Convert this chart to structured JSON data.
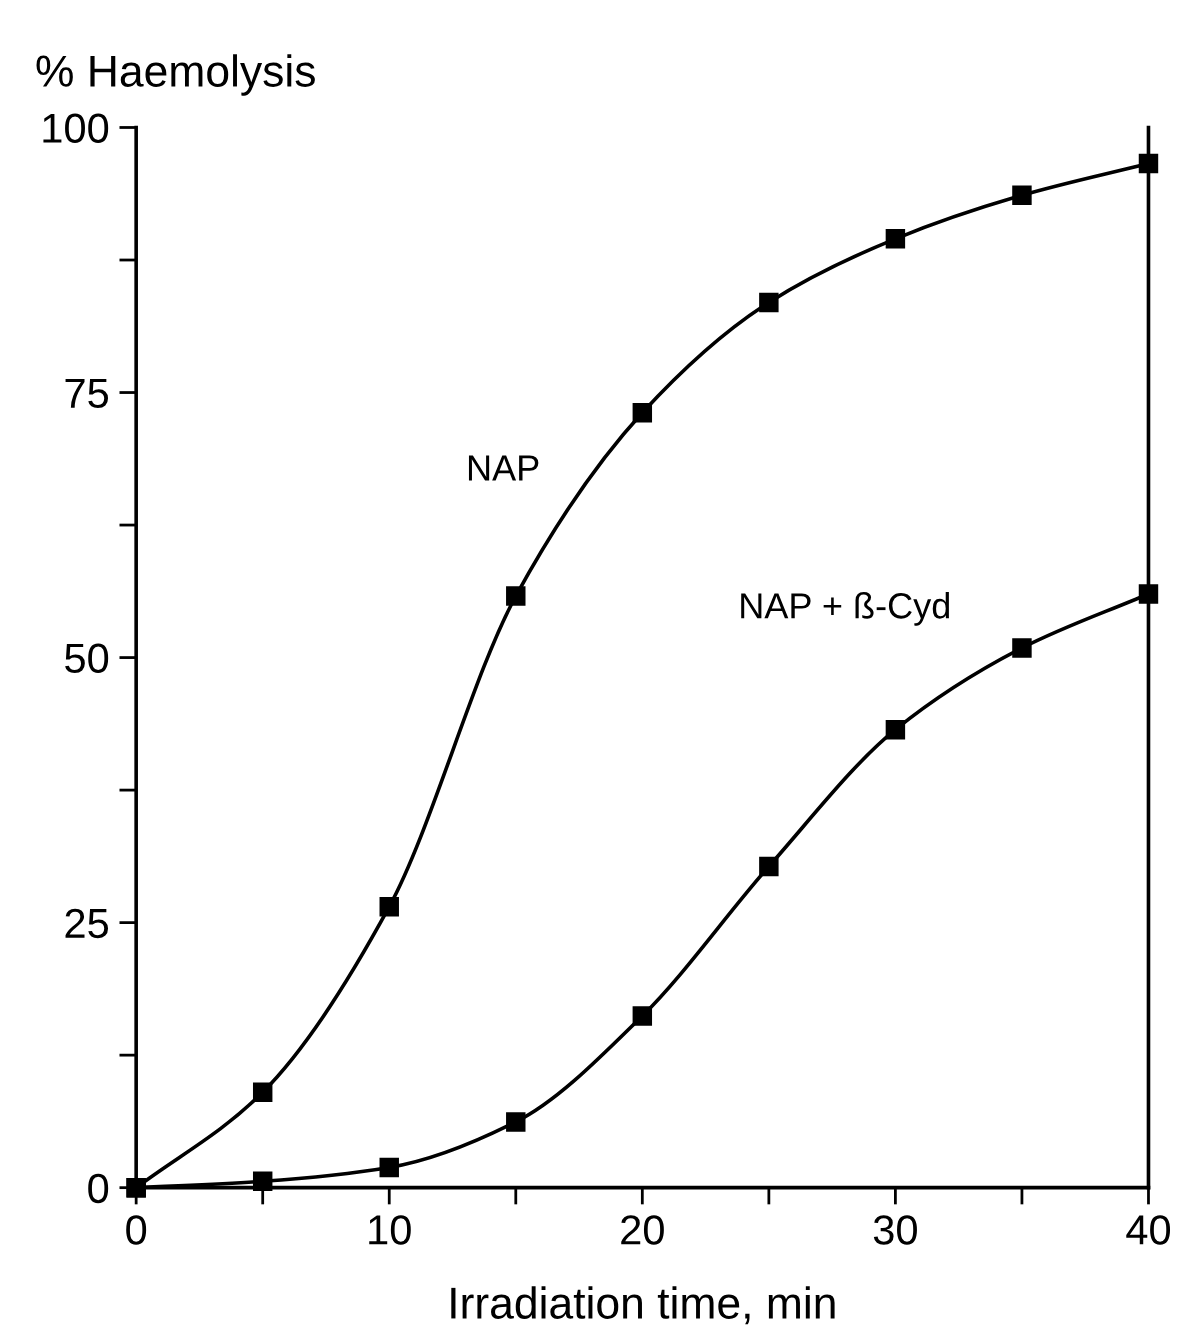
{
  "chart_data": {
    "type": "line",
    "xlabel": "Irradiation time, min",
    "ylabel": "% Haemolysis",
    "xlim": [
      0,
      40
    ],
    "ylim": [
      0,
      100
    ],
    "xticks": [
      0,
      {
        "value": 5,
        "label": null
      },
      10,
      {
        "value": 15,
        "label": null
      },
      20,
      {
        "value": 25,
        "label": null
      },
      30,
      {
        "value": 35,
        "label": null
      },
      40
    ],
    "yticks": [
      0,
      {
        "value": 12.5,
        "label": null
      },
      25,
      {
        "value": 37.5,
        "label": null
      },
      50,
      {
        "value": 62.5,
        "label": null
      },
      75,
      {
        "value": 87.5,
        "label": null
      },
      100
    ],
    "marker": "square",
    "line_style": "solid",
    "grid": false,
    "legend": false,
    "series": [
      {
        "name": "NAP",
        "color": "#000000",
        "x": [
          0,
          5,
          10,
          15,
          20,
          25,
          30,
          35,
          40
        ],
        "values": [
          0,
          9.0,
          26.5,
          55.8,
          73.1,
          83.5,
          89.5,
          93.6,
          96.6
        ]
      },
      {
        "name": "NAP + ß-Cyd",
        "color": "#000000",
        "x": [
          0,
          5,
          10,
          15,
          20,
          25,
          30,
          35,
          40
        ],
        "values": [
          0,
          0.6,
          1.9,
          6.2,
          16.2,
          30.3,
          43.2,
          50.9,
          56.0
        ]
      }
    ]
  }
}
